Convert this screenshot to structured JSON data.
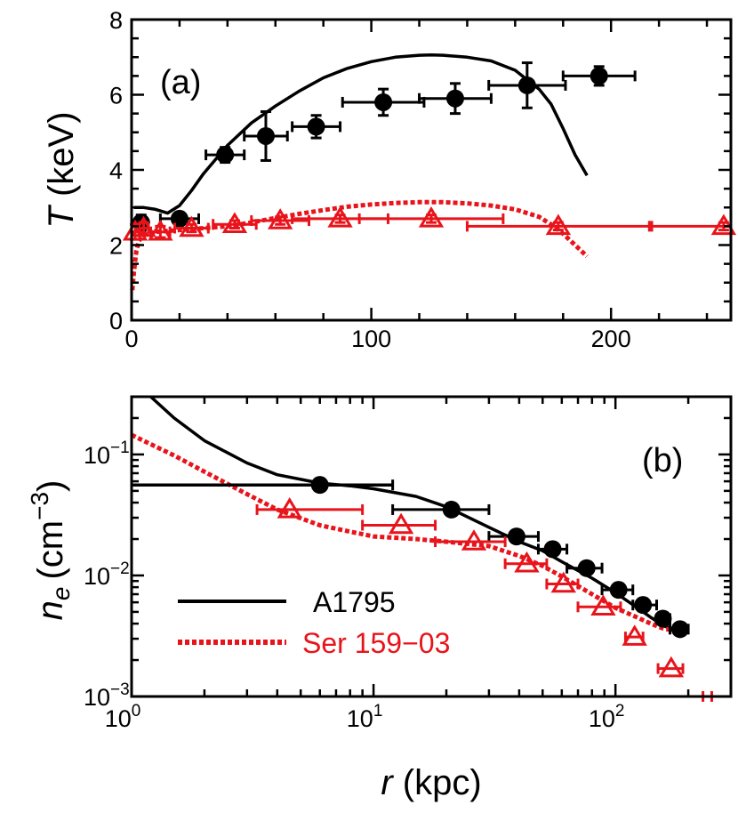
{
  "colors": {
    "a1795": "#000000",
    "ser": "#e8141b"
  },
  "chart_data": [
    {
      "type": "scatter",
      "panel_label": "(a)",
      "xlabel": "",
      "ylabel_var": "T",
      "ylabel_unit": " (keV)",
      "xlim": [
        0,
        250
      ],
      "ylim": [
        0,
        8
      ],
      "x_ticks": [
        0,
        100,
        200
      ],
      "x_tick_labels": [
        "0",
        "100",
        "200"
      ],
      "y_ticks": [
        0,
        2,
        4,
        6,
        8
      ],
      "y_tick_labels": [
        "0",
        "2",
        "4",
        "6",
        "8"
      ],
      "series": [
        {
          "key": "a1795_data",
          "marker": "circle",
          "color": "#000000",
          "points": [
            {
              "x": 4,
              "y": 2.6,
              "xerr": 2,
              "yerr": 0.2
            },
            {
              "x": 20,
              "y": 2.7,
              "xerr": 8,
              "yerr": 0.1
            },
            {
              "x": 39,
              "y": 4.4,
              "xerr": 8,
              "yerr": 0.2
            },
            {
              "x": 56,
              "y": 4.9,
              "xerr": 9,
              "yerr": 0.65
            },
            {
              "x": 77,
              "y": 5.15,
              "xerr": 10,
              "yerr": 0.3
            },
            {
              "x": 105,
              "y": 5.8,
              "xerr": 17,
              "yerr": 0.35
            },
            {
              "x": 135,
              "y": 5.9,
              "xerr": 15,
              "yerr": 0.4
            },
            {
              "x": 165,
              "y": 6.25,
              "xerr": 16,
              "yerr": 0.6
            },
            {
              "x": 195,
              "y": 6.5,
              "xerr": 15,
              "yerr": 0.25
            }
          ]
        },
        {
          "key": "ser_data",
          "marker": "triangle",
          "color": "#e8141b",
          "points": [
            {
              "x": 1.5,
              "y": 2.35,
              "xerr": 1.5,
              "yerr": 0.2
            },
            {
              "x": 5,
              "y": 2.45,
              "xerr": 2,
              "yerr": 0.15
            },
            {
              "x": 12,
              "y": 2.35,
              "xerr": 4,
              "yerr": 0.15
            },
            {
              "x": 25,
              "y": 2.45,
              "xerr": 7,
              "yerr": 0.1
            },
            {
              "x": 43,
              "y": 2.55,
              "xerr": 9,
              "yerr": 0.1
            },
            {
              "x": 62,
              "y": 2.65,
              "xerr": 12,
              "yerr": 0.1
            },
            {
              "x": 87,
              "y": 2.7,
              "xerr": 20,
              "yerr": 0.1
            },
            {
              "x": 125,
              "y": 2.7,
              "xerr": 30,
              "yerr": 0.1
            },
            {
              "x": 178,
              "y": 2.5,
              "xerr": 38,
              "yerr": 0.1
            },
            {
              "x": 247,
              "y": 2.5,
              "xerr": 30,
              "yerr": 0.1
            }
          ]
        }
      ],
      "curves": [
        {
          "key": "a1795_model",
          "style": "solid",
          "color": "#000000",
          "x": [
            1,
            5,
            10,
            15,
            20,
            25,
            30,
            40,
            50,
            60,
            70,
            80,
            90,
            100,
            110,
            120,
            125,
            130,
            140,
            150,
            160,
            170,
            175,
            180,
            185,
            190
          ],
          "y": [
            3.0,
            3.0,
            2.95,
            2.85,
            3.05,
            3.45,
            3.9,
            4.65,
            5.25,
            5.7,
            6.1,
            6.45,
            6.7,
            6.88,
            7.0,
            7.05,
            7.06,
            7.05,
            7.0,
            6.9,
            6.65,
            6.15,
            5.75,
            5.1,
            4.4,
            3.85
          ]
        },
        {
          "key": "ser_model",
          "style": "dotted",
          "color": "#e8141b",
          "x": [
            0.3,
            1,
            2,
            3,
            5,
            10,
            20,
            30,
            40,
            50,
            60,
            70,
            80,
            90,
            100,
            110,
            120,
            130,
            140,
            150,
            160,
            170,
            175,
            180,
            185,
            190
          ],
          "y": [
            0.8,
            1.3,
            1.85,
            2.1,
            2.3,
            2.35,
            2.4,
            2.45,
            2.5,
            2.6,
            2.72,
            2.83,
            2.93,
            3.02,
            3.08,
            3.12,
            3.14,
            3.14,
            3.11,
            3.05,
            2.95,
            2.75,
            2.55,
            2.3,
            2.0,
            1.7
          ]
        }
      ]
    },
    {
      "type": "scatter",
      "panel_label": "(b)",
      "xlabel_var": "r",
      "xlabel_unit": " (kpc)",
      "ylabel_var": "n",
      "ylabel_sub": "e",
      "ylabel_unit_base": "(cm",
      "ylabel_unit_sup": "−3",
      "ylabel_unit_close": ")",
      "x_scale": "log",
      "y_scale": "log",
      "xlim": [
        1,
        300
      ],
      "ylim": [
        0.001,
        0.3
      ],
      "x_ticks": [
        1,
        10,
        100
      ],
      "x_tick_base": [
        "10",
        "10",
        "10"
      ],
      "x_tick_exp": [
        "0",
        "1",
        "2"
      ],
      "y_ticks": [
        0.001,
        0.01,
        0.1
      ],
      "y_tick_base": [
        "10",
        "10",
        "10"
      ],
      "y_tick_exp": [
        "−3",
        "−2",
        "−1"
      ],
      "legend": {
        "position": "bottom-left",
        "entries": [
          {
            "label": "A1795",
            "style": "solid",
            "color": "#000000"
          },
          {
            "label": "Ser 159−03",
            "style": "dotted",
            "color": "#e8141b"
          }
        ]
      },
      "series": [
        {
          "key": "a1795_data",
          "marker": "circle",
          "color": "#000000",
          "points": [
            {
              "x": 6,
              "y": 0.056,
              "xlo": 1,
              "xhi": 12
            },
            {
              "x": 21,
              "y": 0.035,
              "xlo": 12,
              "xhi": 30
            },
            {
              "x": 39,
              "y": 0.021,
              "xlo": 30,
              "xhi": 48
            },
            {
              "x": 55,
              "y": 0.0165,
              "xlo": 48,
              "xhi": 63
            },
            {
              "x": 76,
              "y": 0.0115,
              "xlo": 63,
              "xhi": 88
            },
            {
              "x": 103,
              "y": 0.0076,
              "xlo": 88,
              "xhi": 118
            },
            {
              "x": 130,
              "y": 0.0057,
              "xlo": 118,
              "xhi": 148
            },
            {
              "x": 157,
              "y": 0.0044,
              "xlo": 148,
              "xhi": 168
            },
            {
              "x": 185,
              "y": 0.0036,
              "xlo": 168,
              "xhi": 200
            }
          ]
        },
        {
          "key": "ser_data",
          "marker": "triangle",
          "color": "#e8141b",
          "points": [
            {
              "x": 4.5,
              "y": 0.035,
              "xlo": 3.3,
              "xhi": 9
            },
            {
              "x": 13,
              "y": 0.026,
              "xlo": 9,
              "xhi": 18
            },
            {
              "x": 26,
              "y": 0.019,
              "xlo": 18,
              "xhi": 35
            },
            {
              "x": 43,
              "y": 0.0125,
              "xlo": 35,
              "xhi": 52
            },
            {
              "x": 61,
              "y": 0.0085,
              "xlo": 52,
              "xhi": 70
            },
            {
              "x": 89,
              "y": 0.0055,
              "xlo": 70,
              "xhi": 105
            },
            {
              "x": 120,
              "y": 0.0031,
              "xlo": 110,
              "xhi": 130
            },
            {
              "x": 170,
              "y": 0.0017,
              "xlo": 150,
              "xhi": 190
            },
            {
              "x": 240,
              "y": 0.001,
              "xlo": 230,
              "xhi": 250
            }
          ]
        }
      ],
      "curves": [
        {
          "key": "a1795_model",
          "style": "solid",
          "color": "#000000",
          "x": [
            1.2,
            1.5,
            2,
            3,
            4,
            6,
            8,
            10,
            15,
            20,
            30,
            40,
            50,
            60,
            80,
            100,
            120,
            140,
            160,
            180,
            190
          ],
          "y": [
            0.3,
            0.2,
            0.13,
            0.085,
            0.068,
            0.058,
            0.055,
            0.052,
            0.045,
            0.037,
            0.025,
            0.019,
            0.016,
            0.013,
            0.0095,
            0.0072,
            0.0056,
            0.0045,
            0.0038,
            0.0035,
            0.0034
          ]
        },
        {
          "key": "ser_model",
          "style": "dotted",
          "color": "#e8141b",
          "x": [
            1,
            1.5,
            2,
            3,
            4,
            6,
            8,
            10,
            15,
            20,
            30,
            40,
            50,
            60,
            80,
            100,
            120,
            140,
            160,
            190
          ],
          "y": [
            0.145,
            0.098,
            0.072,
            0.047,
            0.035,
            0.026,
            0.023,
            0.021,
            0.02,
            0.019,
            0.0175,
            0.0145,
            0.012,
            0.0098,
            0.007,
            0.0054,
            0.0046,
            0.004,
            0.0036,
            0.0035
          ]
        },
        {
          "key": "a1795_inner_flat",
          "style": "solid",
          "color": "#000000",
          "x": [
            1,
            12
          ],
          "y": [
            0.056,
            0.056
          ]
        }
      ]
    }
  ]
}
